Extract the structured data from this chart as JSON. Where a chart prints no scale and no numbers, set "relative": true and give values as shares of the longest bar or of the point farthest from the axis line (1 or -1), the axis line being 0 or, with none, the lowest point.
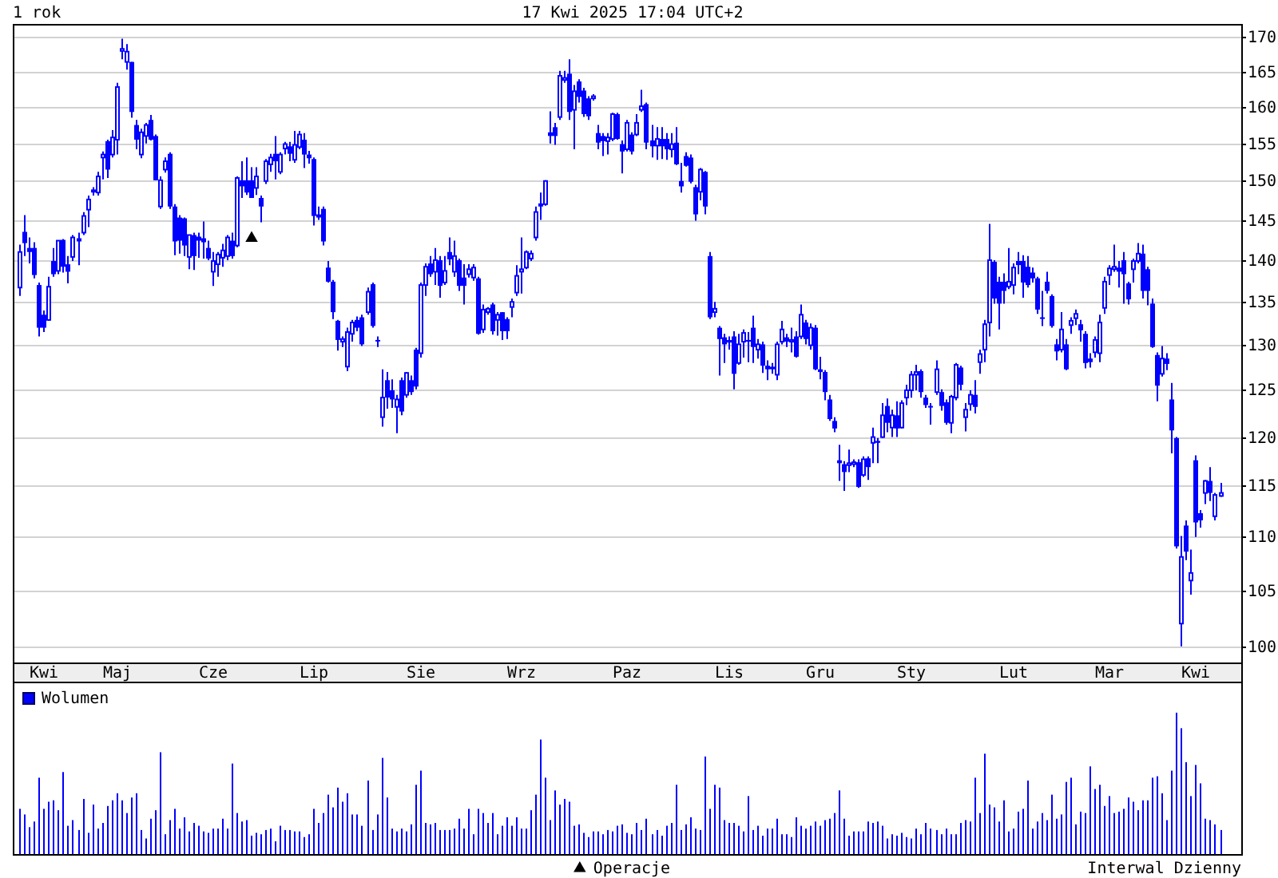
{
  "chart_data": [
    {
      "type": "candlestick",
      "title": "1 rok",
      "subtitle": "17 Kwi 2025 17:04 UTC+2",
      "color": "#0000ff",
      "categories": [
        null,
        null,
        null,
        null,
        null,
        "Kwi",
        null,
        null,
        null,
        null,
        null,
        null,
        null,
        null,
        null,
        null,
        null,
        null,
        null,
        null,
        "Maj",
        null,
        null,
        null,
        null,
        null,
        null,
        null,
        null,
        null,
        null,
        null,
        null,
        null,
        null,
        null,
        null,
        null,
        null,
        null,
        "Cze",
        null,
        null,
        null,
        null,
        null,
        null,
        null,
        null,
        null,
        null,
        null,
        null,
        null,
        null,
        null,
        null,
        null,
        null,
        null,
        null,
        "Lip",
        null,
        null,
        null,
        null,
        null,
        null,
        null,
        null,
        null,
        null,
        null,
        null,
        null,
        null,
        null,
        null,
        null,
        null,
        null,
        null,
        null,
        "Sie",
        null,
        null,
        null,
        null,
        null,
        null,
        null,
        null,
        null,
        null,
        null,
        null,
        null,
        null,
        null,
        null,
        null,
        null,
        null,
        null,
        "Wrz",
        null,
        null,
        null,
        null,
        null,
        null,
        null,
        null,
        null,
        null,
        null,
        null,
        null,
        null,
        null,
        null,
        null,
        null,
        null,
        null,
        null,
        "Paz",
        null,
        null,
        null,
        null,
        null,
        null,
        null,
        null,
        null,
        null,
        null,
        null,
        null,
        null,
        null,
        null,
        null,
        null,
        null,
        null,
        "Lis",
        null,
        null,
        null,
        null,
        null,
        null,
        null,
        null,
        null,
        null,
        null,
        null,
        null,
        null,
        null,
        null,
        null,
        null,
        "Gru",
        null,
        null,
        null,
        null,
        null,
        null,
        null,
        null,
        null,
        null,
        null,
        null,
        null,
        null,
        null,
        null,
        null,
        null,
        "Sty",
        null,
        null,
        null,
        null,
        null,
        null,
        null,
        null,
        null,
        null,
        null,
        null,
        null,
        null,
        null,
        null,
        null,
        null,
        null,
        null,
        "Lut",
        null,
        null,
        null,
        null,
        null,
        null,
        null,
        null,
        null,
        null,
        null,
        null,
        null,
        null,
        null,
        null,
        null,
        null,
        null,
        "Mar",
        null,
        null,
        null,
        null,
        null,
        null,
        null,
        null,
        null,
        null,
        null,
        null,
        null,
        null,
        null,
        null,
        null,
        "Kwi",
        null,
        null,
        null,
        null,
        null
      ],
      "ohlc": [
        [
          136.7,
          141.9,
          135.7,
          141
        ],
        [
          143.5,
          145.6,
          140.5,
          142.1
        ],
        [
          141.5,
          142.8,
          139.6,
          141
        ],
        [
          141.5,
          142.2,
          137.8,
          138.2
        ],
        [
          137,
          137.3,
          131,
          132
        ],
        [
          133.5,
          134,
          131.5,
          132
        ],
        [
          132.9,
          138,
          132.8,
          136.8
        ],
        [
          139.9,
          141.5,
          138,
          138.3
        ],
        [
          138.7,
          142.4,
          138.3,
          142.4
        ],
        [
          142.5,
          142.6,
          138.5,
          139.2
        ],
        [
          139.5,
          140.5,
          137.2,
          138.6
        ],
        [
          140.4,
          143.1,
          139.9,
          142.8
        ],
        [
          142.4,
          143.4,
          139.4,
          142.6
        ],
        [
          143.4,
          146,
          143.1,
          145.5
        ],
        [
          146.3,
          148.1,
          144.1,
          147.6
        ],
        [
          148.9,
          149.2,
          148.1,
          148.5
        ],
        [
          148.5,
          151.2,
          148.1,
          150.6
        ],
        [
          153.1,
          153.9,
          150.2,
          153.5
        ],
        [
          155.3,
          155.5,
          150.4,
          151.5
        ],
        [
          153.5,
          156.8,
          153.1,
          155.8
        ],
        [
          155.5,
          163.4,
          153.5,
          162.8
        ],
        [
          168,
          169.8,
          166.8,
          168.3
        ],
        [
          166.4,
          169,
          165.3,
          167.9
        ],
        [
          166.4,
          166.4,
          158.5,
          159.3
        ],
        [
          157.5,
          158.2,
          154.2,
          155.5
        ],
        [
          153.5,
          157,
          153,
          156.5
        ],
        [
          156,
          157.8,
          155,
          157.5
        ],
        [
          158.2,
          158.9,
          155.4,
          155.5
        ],
        [
          156,
          156.2,
          150.1,
          150.1
        ],
        [
          146.7,
          150.6,
          146.4,
          150.1
        ],
        [
          151.5,
          153.1,
          151.1,
          152.6
        ],
        [
          153.6,
          153.8,
          146.4,
          146.7
        ],
        [
          146.7,
          147,
          140.6,
          142.3
        ],
        [
          145.3,
          145.6,
          140.8,
          142.4
        ],
        [
          145.2,
          145.3,
          140.5,
          141.8
        ],
        [
          140.4,
          143.1,
          138.9,
          143.1
        ],
        [
          143.1,
          143.4,
          138.8,
          140.5
        ],
        [
          142.9,
          143.4,
          140.3,
          142.4
        ],
        [
          142.7,
          144.8,
          140.2,
          142.2
        ],
        [
          141.5,
          142.4,
          140,
          140.2
        ],
        [
          138.6,
          141,
          136.9,
          139.9
        ],
        [
          139.5,
          141,
          138,
          140.7
        ],
        [
          140.3,
          142,
          139.2,
          141.2
        ],
        [
          140.5,
          143.1,
          140,
          142.8
        ],
        [
          142.4,
          143.4,
          140.2,
          140.5
        ],
        [
          141.8,
          150.6,
          141.6,
          150.4
        ],
        [
          150.1,
          152.6,
          147.8,
          149.3
        ],
        [
          150.1,
          153.1,
          148.2,
          148.5
        ],
        [
          150.1,
          151.8,
          147.8,
          147.8
        ],
        [
          149.1,
          151.8,
          148.2,
          150.6
        ],
        [
          147.8,
          148.1,
          144.7,
          146.7
        ],
        [
          150,
          152.9,
          149.6,
          152.6
        ],
        [
          152.2,
          153.6,
          151.2,
          153.1
        ],
        [
          153.6,
          156,
          150.2,
          152.6
        ],
        [
          151.2,
          153.8,
          150.9,
          153.5
        ],
        [
          154.3,
          155.2,
          153.5,
          154.9
        ],
        [
          154.6,
          155.2,
          152.6,
          153.6
        ],
        [
          152.8,
          156.7,
          152.4,
          154.8
        ],
        [
          154.5,
          156.7,
          154.2,
          156.2
        ],
        [
          155.5,
          156.4,
          151.7,
          153.5
        ],
        [
          153.5,
          154,
          152.3,
          153
        ],
        [
          152.9,
          153.1,
          144.3,
          145.5
        ],
        [
          145.7,
          146.7,
          145,
          145.3
        ],
        [
          146.4,
          146.7,
          141.8,
          142.3
        ],
        [
          139.1,
          139.9,
          137.3,
          137.4
        ],
        [
          137.4,
          137.6,
          133,
          133.8
        ],
        [
          132.8,
          132.9,
          129.4,
          130.6
        ],
        [
          130.4,
          131,
          129.8,
          130.7
        ],
        [
          127.6,
          132,
          127.1,
          131.5
        ],
        [
          131.3,
          132.9,
          130.4,
          132.6
        ],
        [
          132.9,
          133.3,
          131.6,
          132
        ],
        [
          133.2,
          133.5,
          129.9,
          130.1
        ],
        [
          133.8,
          136.7,
          133.5,
          136.2
        ],
        [
          137.1,
          137.3,
          132,
          132.2
        ],
        [
          130.6,
          131,
          129.8,
          130.5
        ],
        [
          122.1,
          127.3,
          121.1,
          124.2
        ],
        [
          126.1,
          127,
          123,
          124.2
        ],
        [
          125,
          126.2,
          123.1,
          124
        ],
        [
          123.2,
          124.5,
          120.4,
          124
        ],
        [
          126.1,
          126.4,
          122.3,
          122.7
        ],
        [
          124.5,
          127,
          124.2,
          126.9
        ],
        [
          126.1,
          126.6,
          124.5,
          124.8
        ],
        [
          129.5,
          129.7,
          125.1,
          125.4
        ],
        [
          129.1,
          137.3,
          128.6,
          137
        ],
        [
          137,
          139.6,
          135.7,
          139.2
        ],
        [
          139.6,
          140.5,
          138,
          138.3
        ],
        [
          138.6,
          141.5,
          137,
          140
        ],
        [
          140,
          140.5,
          135.5,
          136.9
        ],
        [
          137.3,
          140.5,
          137,
          138.7
        ],
        [
          141,
          142.8,
          139.4,
          140.1
        ],
        [
          138.6,
          142.4,
          138,
          140.5
        ],
        [
          140,
          140.2,
          136.3,
          136.9
        ],
        [
          137.9,
          139.5,
          134.7,
          136.9
        ],
        [
          138.3,
          139.5,
          137.9,
          138.9
        ],
        [
          137.9,
          139.5,
          137.5,
          139.1
        ],
        [
          137.8,
          138,
          131.2,
          131.3
        ],
        [
          131.8,
          134.7,
          131.4,
          134.1
        ],
        [
          133.8,
          134.4,
          133.5,
          134.2
        ],
        [
          134.7,
          134.9,
          131.2,
          131.6
        ],
        [
          132.9,
          133.8,
          131.1,
          133.5
        ],
        [
          133.8,
          133.8,
          130.6,
          131.6
        ],
        [
          133,
          133.2,
          130.7,
          131.6
        ],
        [
          134.4,
          135.4,
          133.2,
          135
        ],
        [
          136.1,
          139.4,
          135.7,
          138.1
        ],
        [
          138.6,
          142.8,
          136,
          138.9
        ],
        [
          139.1,
          141.2,
          138.9,
          141
        ],
        [
          140.2,
          141.2,
          139.9,
          140.8
        ],
        [
          142.8,
          146.7,
          142.4,
          146
        ],
        [
          146.8,
          148.5,
          145,
          147
        ],
        [
          147,
          150.1,
          146.8,
          150
        ],
        [
          156.5,
          159.4,
          155,
          156
        ],
        [
          157.2,
          157.8,
          154.8,
          156
        ],
        [
          158.6,
          165.1,
          158.2,
          164.4
        ],
        [
          163.8,
          165.1,
          163.4,
          164.1
        ],
        [
          164.7,
          166.8,
          158.2,
          159.3
        ],
        [
          159.6,
          163.1,
          154.2,
          162.2
        ],
        [
          163.6,
          163.9,
          160.6,
          161.4
        ],
        [
          162.3,
          162.7,
          158.6,
          159
        ],
        [
          161.2,
          161.5,
          158.2,
          158.7
        ],
        [
          161.2,
          161.8,
          160.9,
          161.5
        ],
        [
          156.4,
          157.5,
          154.2,
          155.1
        ],
        [
          156,
          156.4,
          153.3,
          155.3
        ],
        [
          155.3,
          156.4,
          153.5,
          155.8
        ],
        [
          155.6,
          159.2,
          155.3,
          159
        ],
        [
          159,
          159.2,
          155.5,
          155.6
        ],
        [
          154.9,
          155.4,
          151,
          153.9
        ],
        [
          154.2,
          158.2,
          153.9,
          157.8
        ],
        [
          156.2,
          156.5,
          153.5,
          153.9
        ],
        [
          156.2,
          159,
          156,
          157.8
        ],
        [
          159.6,
          162.4,
          159.3,
          160.1
        ],
        [
          160.4,
          160.6,
          154.2,
          155.1
        ],
        [
          155.4,
          157.5,
          153.1,
          154.6
        ],
        [
          154.7,
          157.2,
          152.8,
          155.6
        ],
        [
          155.6,
          157.2,
          152.9,
          154.6
        ],
        [
          155.6,
          156.4,
          152.8,
          154.2
        ],
        [
          154.2,
          156.4,
          153.1,
          154.9
        ],
        [
          155.1,
          157.2,
          152.1,
          152.2
        ],
        [
          150,
          152.4,
          148.5,
          149.3
        ],
        [
          153.3,
          153.8,
          151.9,
          152
        ],
        [
          153.1,
          153.5,
          149.7,
          149.9
        ],
        [
          149.2,
          149.5,
          144.9,
          145.7
        ],
        [
          148.6,
          151.7,
          147.5,
          151.5
        ],
        [
          151.2,
          151.3,
          145.7,
          146.7
        ],
        [
          140.5,
          141,
          133,
          133.2
        ],
        [
          133.8,
          135,
          133.2,
          134.2
        ],
        [
          132,
          132.2,
          126.6,
          130.7
        ],
        [
          130.9,
          131.3,
          128,
          130.1
        ],
        [
          130.4,
          131,
          129.5,
          130.5
        ],
        [
          131,
          131.6,
          125.1,
          126.8
        ],
        [
          128,
          131.3,
          127.8,
          130.1
        ],
        [
          130.4,
          131.8,
          128.6,
          131.4
        ],
        [
          130.6,
          131.5,
          128.1,
          130.4
        ],
        [
          132,
          133.4,
          128,
          129.8
        ],
        [
          129.5,
          130.7,
          128.5,
          130.1
        ],
        [
          130.1,
          130.4,
          126.9,
          127.7
        ],
        [
          127.7,
          128.3,
          126.1,
          127.3
        ],
        [
          127.4,
          128,
          126.8,
          127.5
        ],
        [
          126.7,
          130.4,
          126.1,
          130.1
        ],
        [
          130.4,
          132.8,
          130.1,
          131.8
        ],
        [
          130.9,
          131.3,
          129.8,
          130.4
        ],
        [
          130.4,
          132,
          129.2,
          130.6
        ],
        [
          131,
          131.6,
          128.6,
          128.7
        ],
        [
          131,
          134.7,
          130.7,
          133.5
        ],
        [
          132.6,
          132.9,
          130.1,
          130.7
        ],
        [
          130,
          132.5,
          129.5,
          132
        ],
        [
          132,
          132.3,
          127.2,
          127.3
        ],
        [
          127.3,
          128.7,
          126.2,
          127
        ],
        [
          127,
          127.2,
          123.9,
          124.8
        ],
        [
          124,
          124.5,
          121.7,
          121.9
        ],
        [
          121.7,
          122.1,
          120.5,
          120.9
        ],
        [
          117.6,
          119.2,
          115.5,
          117.3
        ],
        [
          117.2,
          117.5,
          114.5,
          116.4
        ],
        [
          117.1,
          118.7,
          116.4,
          117.3
        ],
        [
          117.2,
          117.7,
          116.9,
          117.4
        ],
        [
          117.4,
          117.7,
          114.8,
          114.9
        ],
        [
          116.1,
          118,
          115.9,
          117.7
        ],
        [
          117.8,
          118,
          115.6,
          116.9
        ],
        [
          119.4,
          121,
          117.3,
          120
        ],
        [
          119.6,
          119.9,
          117.3,
          119.4
        ],
        [
          120,
          123.6,
          119.9,
          122.3
        ],
        [
          123.3,
          124.1,
          120.5,
          121.5
        ],
        [
          121,
          122.9,
          120,
          122.3
        ],
        [
          122.3,
          123.8,
          120,
          120.9
        ],
        [
          121,
          123.9,
          120.9,
          123.6
        ],
        [
          124.2,
          125.6,
          123.4,
          125
        ],
        [
          125,
          127.1,
          124.2,
          126.7
        ],
        [
          126.7,
          127.8,
          125,
          127
        ],
        [
          127.1,
          127.3,
          124.2,
          124.8
        ],
        [
          124.2,
          124.5,
          123.1,
          123.4
        ],
        [
          123.3,
          123.6,
          121.3,
          123.2
        ],
        [
          124.8,
          128.3,
          124.5,
          127.3
        ],
        [
          124.8,
          125.1,
          122.8,
          123.3
        ],
        [
          123.7,
          124,
          121.3,
          121.5
        ],
        [
          121.5,
          124.5,
          120.4,
          124.3
        ],
        [
          124.2,
          128,
          123.9,
          127.8
        ],
        [
          127.5,
          127.7,
          125,
          125.6
        ],
        [
          122.1,
          123.6,
          120.6,
          122.9
        ],
        [
          123.5,
          125,
          122.8,
          124.5
        ],
        [
          124.5,
          126.1,
          122.5,
          123.2
        ],
        [
          128.1,
          129.5,
          126.8,
          129
        ],
        [
          129.5,
          132.9,
          128.1,
          132.4
        ],
        [
          132.6,
          144.5,
          131,
          140
        ],
        [
          139.8,
          140,
          134.8,
          135.4
        ],
        [
          137.4,
          138,
          131.8,
          134.8
        ],
        [
          137.4,
          138.4,
          134.8,
          136.3
        ],
        [
          136.8,
          141.5,
          136.5,
          137.4
        ],
        [
          137,
          139.6,
          135.9,
          139.1
        ],
        [
          139.9,
          141,
          138.3,
          139.4
        ],
        [
          139.9,
          140.6,
          135.5,
          137.3
        ],
        [
          139.2,
          140.5,
          136.7,
          137
        ],
        [
          138.5,
          139.1,
          137.3,
          137.8
        ],
        [
          137.8,
          138,
          133.6,
          134.1
        ],
        [
          133.2,
          136.3,
          132.2,
          133.1
        ],
        [
          137.4,
          138.6,
          136,
          136.3
        ],
        [
          135.7,
          135.9,
          132,
          132.2
        ],
        [
          130.1,
          130.7,
          128.3,
          129.3
        ],
        [
          129.5,
          133.8,
          129.2,
          131.8
        ],
        [
          130.1,
          130.7,
          127.2,
          127.3
        ],
        [
          132.3,
          133.2,
          131.3,
          132.8
        ],
        [
          133.1,
          134.1,
          132.3,
          133.6
        ],
        [
          132.4,
          132.9,
          130.4,
          131.7
        ],
        [
          131.3,
          131.6,
          127.4,
          128
        ],
        [
          128.5,
          129.1,
          127.5,
          128.1
        ],
        [
          129.2,
          131,
          128.6,
          130.6
        ],
        [
          129.1,
          133.5,
          128.1,
          132.6
        ],
        [
          134.3,
          138,
          133.6,
          137.4
        ],
        [
          138.2,
          139.4,
          137,
          139
        ],
        [
          138.9,
          141.9,
          138.6,
          139.2
        ],
        [
          139.1,
          139.9,
          136.7,
          138.6
        ],
        [
          140,
          141,
          134.8,
          138.3
        ],
        [
          137.2,
          137.4,
          134.7,
          135.3
        ],
        [
          138.9,
          140.2,
          137.3,
          139.9
        ],
        [
          139.9,
          142.1,
          139.6,
          140.8
        ],
        [
          140.8,
          141.9,
          135.4,
          136.3
        ],
        [
          138.9,
          139.2,
          134.6,
          136.3
        ],
        [
          134.8,
          135.4,
          129.7,
          129.8
        ],
        [
          128.9,
          129.2,
          123.8,
          125.5
        ],
        [
          126.8,
          129.9,
          126.5,
          128.5
        ],
        [
          128.5,
          129.1,
          127.2,
          127.9
        ],
        [
          124,
          125.8,
          118.3,
          120.7
        ],
        [
          119.9,
          120,
          108.9,
          109.1
        ],
        [
          102,
          110.1,
          100,
          108.1
        ],
        [
          111.1,
          111.6,
          107.8,
          108.6
        ],
        [
          105.9,
          108.8,
          104.6,
          106.6
        ],
        [
          117.6,
          118.1,
          110,
          111.4
        ],
        [
          112.3,
          112.6,
          110.9,
          111.6
        ],
        [
          114.3,
          115.6,
          113.2,
          115.5
        ],
        [
          115.5,
          116.9,
          113.5,
          114.3
        ],
        [
          112,
          114.3,
          111.6,
          114.1
        ],
        [
          114,
          115.3,
          113.9,
          114.3
        ]
      ],
      "series": [
        {
          "type": "scatter",
          "name": "Operacje",
          "color": "#000000",
          "marker": "triangle",
          "values": [
            null,
            null,
            null,
            null,
            null,
            null,
            null,
            null,
            null,
            null,
            null,
            null,
            null,
            null,
            null,
            null,
            null,
            null,
            null,
            null,
            null,
            null,
            null,
            null,
            null,
            null,
            null,
            null,
            null,
            null,
            null,
            null,
            null,
            null,
            null,
            null,
            null,
            null,
            null,
            null,
            null,
            null,
            null,
            null,
            null,
            null,
            null,
            null,
            142.7,
            null,
            null,
            null,
            null,
            null,
            null,
            null,
            null,
            null,
            null,
            null,
            null,
            null,
            null,
            null,
            null,
            null,
            null,
            null,
            null,
            null,
            null,
            null,
            null,
            null,
            null,
            null,
            null,
            null,
            null,
            null,
            null,
            null,
            null,
            null,
            null,
            null,
            null,
            null,
            null,
            null,
            null,
            null,
            null,
            null,
            null,
            null,
            null,
            null,
            null,
            null,
            null,
            null,
            null,
            null,
            null,
            null,
            null,
            null,
            null,
            null,
            null,
            null,
            null,
            null,
            null,
            null,
            null,
            null,
            null,
            null,
            null,
            null,
            null,
            null,
            null,
            null,
            null,
            null,
            null,
            null,
            null,
            null,
            null,
            null,
            null,
            null,
            null,
            null,
            null,
            null,
            null,
            null,
            null,
            null,
            null,
            null,
            null,
            null,
            null,
            null,
            null,
            null,
            null,
            null,
            null,
            null,
            null,
            null,
            null,
            null,
            null,
            null,
            null,
            null,
            null,
            null,
            null,
            null,
            null,
            null,
            null,
            null,
            null,
            null,
            null,
            null,
            null,
            null,
            null,
            null,
            null,
            null,
            null,
            null,
            null,
            null,
            null,
            null,
            null,
            null,
            null,
            null,
            null,
            null,
            null,
            null,
            null,
            null,
            null,
            null,
            null,
            null,
            null,
            null,
            null,
            null,
            null,
            null,
            null,
            null,
            null,
            null,
            null,
            null,
            null,
            null,
            null,
            null,
            null,
            null,
            null,
            null,
            null,
            null,
            null,
            null,
            null,
            null,
            null,
            null,
            null,
            null,
            null,
            null,
            null,
            null,
            null,
            null,
            null,
            null,
            null,
            null,
            null,
            null,
            null,
            null,
            null,
            null,
            null,
            null
          ]
        }
      ],
      "log": true,
      "ylim": [
        98.6,
        172
      ],
      "yticks": [
        100,
        105,
        110,
        115,
        120,
        125,
        130,
        135,
        140,
        145,
        150,
        155,
        160,
        165,
        170
      ],
      "grid": "y",
      "legend": "bottom"
    },
    {
      "type": "bar",
      "categories": [
        null,
        null,
        null,
        null,
        null,
        null,
        null,
        null,
        null,
        null,
        null,
        null,
        null,
        null,
        null,
        null,
        null,
        null,
        null,
        null,
        null,
        null,
        null,
        null,
        null,
        null,
        null,
        null,
        null,
        null,
        null,
        null,
        null,
        null,
        null,
        null,
        null,
        null,
        null,
        null,
        null,
        null,
        null,
        null,
        null,
        null,
        null,
        null,
        null,
        null,
        null,
        null,
        null,
        null,
        null,
        null,
        null,
        null,
        null,
        null,
        null,
        null,
        null,
        null,
        null,
        null,
        null,
        null,
        null,
        null,
        null,
        null,
        null,
        null,
        null,
        null,
        null,
        null,
        null,
        null,
        null,
        null,
        null,
        null,
        null,
        null,
        null,
        null,
        null,
        null,
        null,
        null,
        null,
        null,
        null,
        null,
        null,
        null,
        null,
        null,
        null,
        null,
        null,
        null,
        null,
        null,
        null,
        null,
        null,
        null,
        null,
        null,
        null,
        null,
        null,
        null,
        null,
        null,
        null,
        null,
        null,
        null,
        null,
        null,
        null,
        null,
        null,
        null,
        null,
        null,
        null,
        null,
        null,
        null,
        null,
        null,
        null,
        null,
        null,
        null,
        null,
        null,
        null,
        null,
        null,
        null,
        null,
        null,
        null,
        null,
        null,
        null,
        null,
        null,
        null,
        null,
        null,
        null,
        null,
        null,
        null,
        null,
        null,
        null,
        null,
        null,
        null,
        null,
        null,
        null,
        null,
        null,
        null,
        null,
        null,
        null,
        null,
        null,
        null,
        null,
        null,
        null,
        null,
        null,
        null,
        null,
        null,
        null,
        null,
        null,
        null,
        null,
        null,
        null,
        null,
        null,
        null,
        null,
        null,
        null,
        null,
        null,
        null,
        null,
        null,
        null,
        null,
        null,
        null,
        null,
        null,
        null,
        null,
        null,
        null,
        null,
        null,
        null,
        null,
        null,
        null,
        null,
        null,
        null,
        null,
        null,
        null,
        null,
        null,
        null,
        null,
        null,
        null,
        null,
        null,
        null,
        null,
        null,
        null,
        null,
        null,
        null,
        null,
        null,
        null,
        null,
        null,
        null,
        null,
        null
      ],
      "series": [
        {
          "name": "Wolumen",
          "color": "#0000ff",
          "values": [
            0.32,
            0.28,
            0.19,
            0.23,
            0.54,
            0.32,
            0.37,
            0.38,
            0.31,
            0.58,
            0.2,
            0.24,
            0.17,
            0.39,
            0.15,
            0.35,
            0.18,
            0.22,
            0.34,
            0.38,
            0.43,
            0.38,
            0.29,
            0.4,
            0.43,
            0.17,
            0.11,
            0.25,
            0.31,
            0.72,
            0.14,
            0.24,
            0.32,
            0.18,
            0.26,
            0.16,
            0.22,
            0.2,
            0.16,
            0.15,
            0.18,
            0.18,
            0.25,
            0.18,
            0.64,
            0.29,
            0.23,
            0.24,
            0.13,
            0.15,
            0.14,
            0.17,
            0.18,
            0.09,
            0.2,
            0.17,
            0.17,
            0.16,
            0.16,
            0.12,
            0.14,
            0.32,
            0.22,
            0.29,
            0.42,
            0.33,
            0.47,
            0.37,
            0.43,
            0.28,
            0.28,
            0.2,
            0.52,
            0.17,
            0.28,
            0.68,
            0.4,
            0.18,
            0.16,
            0.18,
            0.16,
            0.21,
            0.49,
            0.59,
            0.22,
            0.21,
            0.22,
            0.17,
            0.17,
            0.17,
            0.18,
            0.25,
            0.18,
            0.32,
            0.14,
            0.32,
            0.29,
            0.22,
            0.29,
            0.14,
            0.2,
            0.26,
            0.2,
            0.26,
            0.18,
            0.18,
            0.31,
            0.42,
            0.81,
            0.54,
            0.24,
            0.45,
            0.35,
            0.39,
            0.37,
            0.2,
            0.21,
            0.15,
            0.12,
            0.16,
            0.16,
            0.14,
            0.17,
            0.16,
            0.2,
            0.21,
            0.15,
            0.14,
            0.22,
            0.17,
            0.25,
            0.14,
            0.17,
            0.13,
            0.2,
            0.22,
            0.49,
            0.17,
            0.21,
            0.26,
            0.18,
            0.17,
            0.69,
            0.32,
            0.49,
            0.47,
            0.24,
            0.22,
            0.22,
            0.2,
            0.16,
            0.41,
            0.17,
            0.2,
            0.13,
            0.18,
            0.18,
            0.25,
            0.14,
            0.14,
            0.12,
            0.26,
            0.2,
            0.18,
            0.2,
            0.23,
            0.2,
            0.24,
            0.25,
            0.29,
            0.45,
            0.25,
            0.13,
            0.16,
            0.16,
            0.16,
            0.23,
            0.22,
            0.23,
            0.2,
            0.11,
            0.14,
            0.13,
            0.15,
            0.12,
            0.11,
            0.18,
            0.14,
            0.22,
            0.18,
            0.17,
            0.14,
            0.18,
            0.14,
            0.14,
            0.22,
            0.24,
            0.23,
            0.54,
            0.29,
            0.71,
            0.35,
            0.33,
            0.23,
            0.38,
            0.16,
            0.18,
            0.3,
            0.32,
            0.52,
            0.18,
            0.23,
            0.29,
            0.24,
            0.42,
            0.25,
            0.28,
            0.51,
            0.54,
            0.21,
            0.3,
            0.29,
            0.62,
            0.46,
            0.49,
            0.34,
            0.41,
            0.29,
            0.3,
            0.32,
            0.4,
            0.37,
            0.31,
            0.38,
            0.38,
            0.54,
            0.55,
            0.43,
            0.24,
            0.59,
            1,
            0.89,
            0.65,
            0.41,
            0.63,
            0.5,
            0.25,
            0.24,
            0.21,
            0.17
          ]
        }
      ],
      "relative": true,
      "legend": "top left",
      "annotations": [
        "Interwal Dzienny"
      ]
    }
  ]
}
